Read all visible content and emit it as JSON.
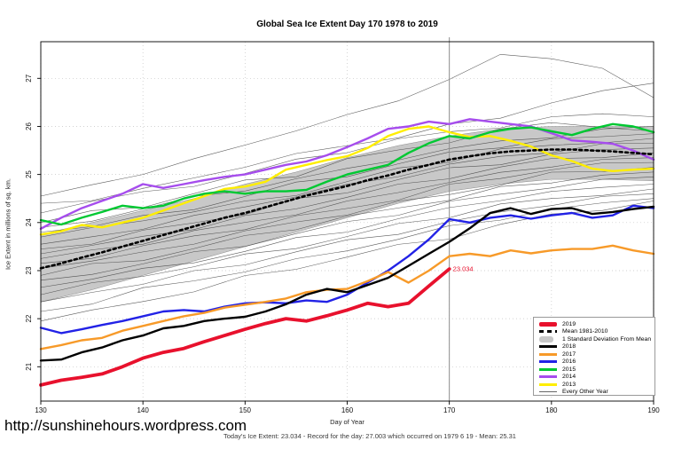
{
  "header": {
    "title": "Global Sea Ice Extent Day 170 1978 to 2019"
  },
  "footer": {
    "url": "http://sunshinehours.wordpress.com",
    "caption": "Today's Ice Extent: 23.034  - Record for the day: 27.003 which occurred on 1979 6 19  - Mean: 25.31"
  },
  "chart_data": {
    "type": "line",
    "title": "Global Sea Ice Extent Day 170 1978 to 2019",
    "xlabel": "Day of Year",
    "ylabel": "Ice Extent in millions of sq. km.",
    "xlim": [
      130,
      190
    ],
    "ylim": [
      20.3,
      27.76
    ],
    "grid": "dotted",
    "xticks": [
      130,
      140,
      150,
      160,
      170,
      180,
      190
    ],
    "yticks": [
      21,
      22,
      23,
      24,
      25,
      26,
      27
    ],
    "vline_day": 170,
    "annotation": {
      "text": "23.034",
      "day": 170,
      "value": 23.034,
      "color": "#e8112d"
    },
    "days": [
      130,
      132,
      134,
      136,
      138,
      140,
      142,
      144,
      146,
      148,
      150,
      152,
      154,
      156,
      158,
      160,
      162,
      164,
      166,
      168,
      170,
      172,
      174,
      176,
      178,
      180,
      182,
      184,
      186,
      188,
      190
    ],
    "series": [
      {
        "name": "2019",
        "color": "#e8112d",
        "width": 3.8,
        "days": [
          130,
          132,
          134,
          136,
          138,
          140,
          142,
          144,
          146,
          148,
          150,
          152,
          154,
          156,
          158,
          160,
          162,
          164,
          166,
          168,
          170
        ],
        "values": [
          20.62,
          20.72,
          20.78,
          20.85,
          21.0,
          21.18,
          21.3,
          21.38,
          21.52,
          21.65,
          21.78,
          21.9,
          22.0,
          21.95,
          22.06,
          22.18,
          22.32,
          22.25,
          22.32,
          22.68,
          23.034
        ]
      },
      {
        "name": "2018",
        "color": "#000000",
        "width": 2.4,
        "values": [
          21.13,
          21.15,
          21.3,
          21.4,
          21.55,
          21.65,
          21.8,
          21.85,
          21.95,
          22.0,
          22.04,
          22.15,
          22.3,
          22.5,
          22.62,
          22.55,
          22.7,
          22.85,
          23.1,
          23.35,
          23.6,
          23.88,
          24.2,
          24.3,
          24.18,
          24.28,
          24.3,
          24.18,
          24.22,
          24.28,
          24.33
        ]
      },
      {
        "name": "2017",
        "color": "#f79a29",
        "width": 2.4,
        "values": [
          21.37,
          21.45,
          21.55,
          21.6,
          21.75,
          21.85,
          21.95,
          22.05,
          22.12,
          22.23,
          22.29,
          22.35,
          22.42,
          22.55,
          22.6,
          22.62,
          22.78,
          22.97,
          22.75,
          23.0,
          23.3,
          23.35,
          23.3,
          23.42,
          23.36,
          23.42,
          23.45,
          23.45,
          23.52,
          23.42,
          23.35
        ]
      },
      {
        "name": "2016",
        "color": "#2222e6",
        "width": 2.4,
        "values": [
          21.81,
          21.7,
          21.78,
          21.87,
          21.95,
          22.05,
          22.15,
          22.18,
          22.15,
          22.25,
          22.32,
          22.34,
          22.32,
          22.38,
          22.35,
          22.5,
          22.75,
          23.0,
          23.3,
          23.65,
          24.07,
          24.0,
          24.1,
          24.15,
          24.08,
          24.15,
          24.2,
          24.1,
          24.15,
          24.35,
          24.3
        ]
      },
      {
        "name": "2015",
        "color": "#00c832",
        "width": 2.4,
        "values": [
          24.05,
          23.96,
          24.1,
          24.22,
          24.35,
          24.3,
          24.35,
          24.5,
          24.6,
          24.65,
          24.6,
          24.65,
          24.65,
          24.68,
          24.85,
          25.0,
          25.1,
          25.2,
          25.45,
          25.65,
          25.8,
          25.75,
          25.88,
          25.95,
          25.98,
          25.9,
          25.82,
          25.95,
          26.05,
          26.0,
          25.88
        ]
      },
      {
        "name": "2014",
        "color": "#a64ded",
        "width": 2.4,
        "values": [
          23.87,
          24.1,
          24.3,
          24.45,
          24.6,
          24.8,
          24.72,
          24.8,
          24.88,
          24.95,
          25.0,
          25.1,
          25.2,
          25.27,
          25.4,
          25.57,
          25.75,
          25.95,
          26.0,
          26.1,
          26.05,
          26.15,
          26.1,
          26.05,
          26.0,
          25.86,
          25.71,
          25.68,
          25.64,
          25.5,
          25.31
        ]
      },
      {
        "name": "2013",
        "color": "#ffee00",
        "width": 2.4,
        "values": [
          23.75,
          23.82,
          23.95,
          23.9,
          24.0,
          24.1,
          24.25,
          24.4,
          24.55,
          24.7,
          24.75,
          24.85,
          25.1,
          25.2,
          25.3,
          25.38,
          25.55,
          25.8,
          25.95,
          26.0,
          25.88,
          25.78,
          25.8,
          25.7,
          25.58,
          25.4,
          25.28,
          25.12,
          25.07,
          25.1,
          25.12
        ]
      }
    ],
    "mean_1981_2010": {
      "name": "Mean 1981-2010",
      "color": "#000000",
      "style": "dashed",
      "values": [
        23.05,
        23.15,
        23.27,
        23.38,
        23.5,
        23.62,
        23.74,
        23.86,
        23.98,
        24.1,
        24.2,
        24.32,
        24.44,
        24.56,
        24.66,
        24.76,
        24.88,
        24.98,
        25.1,
        25.2,
        25.31,
        25.38,
        25.44,
        25.48,
        25.5,
        25.52,
        25.52,
        25.5,
        25.48,
        25.45,
        25.42
      ]
    },
    "std_band": {
      "name": "1 Standard Deviation From Mean",
      "fill": "#c8c8c8",
      "days": [
        130,
        135,
        140,
        145,
        150,
        155,
        160,
        165,
        170,
        175,
        180,
        185,
        190
      ],
      "top": [
        23.75,
        24.0,
        24.25,
        24.5,
        24.8,
        25.05,
        25.35,
        25.6,
        25.8,
        25.95,
        26.0,
        26.0,
        26.0
      ],
      "bottom": [
        22.35,
        22.6,
        22.9,
        23.2,
        23.5,
        23.8,
        24.1,
        24.4,
        24.65,
        24.8,
        24.9,
        24.9,
        24.87
      ]
    },
    "other_years": {
      "name": "Every Other Year",
      "color": "#3f3f3f",
      "days": [
        130,
        135,
        140,
        145,
        150,
        155,
        160,
        165,
        170,
        175,
        180,
        185,
        190
      ],
      "lines": [
        [
          24.55,
          24.75,
          25.05,
          25.3,
          25.6,
          25.95,
          26.2,
          26.55,
          27.0,
          27.45,
          27.45,
          27.2,
          26.6
        ],
        [
          24.4,
          24.5,
          24.7,
          24.9,
          25.2,
          25.4,
          25.6,
          25.8,
          26.0,
          26.2,
          26.5,
          26.7,
          26.9
        ],
        [
          24.2,
          24.45,
          24.6,
          24.8,
          25.0,
          25.3,
          25.5,
          25.7,
          25.9,
          26.0,
          26.15,
          26.3,
          26.2
        ],
        [
          24.0,
          24.2,
          24.35,
          24.6,
          24.85,
          25.0,
          25.3,
          25.5,
          25.7,
          25.9,
          26.1,
          26.0,
          25.9
        ],
        [
          23.9,
          24.05,
          24.3,
          24.5,
          24.7,
          24.9,
          25.1,
          25.35,
          25.5,
          25.7,
          25.8,
          25.9,
          26.0
        ],
        [
          23.8,
          23.95,
          24.1,
          24.3,
          24.55,
          24.8,
          25.0,
          25.2,
          25.45,
          25.6,
          25.7,
          25.8,
          25.85
        ],
        [
          23.7,
          23.85,
          24.05,
          24.25,
          24.4,
          24.6,
          24.85,
          25.1,
          25.3,
          25.5,
          25.6,
          25.7,
          25.75
        ],
        [
          23.55,
          23.7,
          23.9,
          24.1,
          24.35,
          24.55,
          24.75,
          25.0,
          25.2,
          25.35,
          25.5,
          25.6,
          25.65
        ],
        [
          23.45,
          23.6,
          23.8,
          24.0,
          24.2,
          24.45,
          24.65,
          24.9,
          25.1,
          25.25,
          25.4,
          25.5,
          25.55
        ],
        [
          23.35,
          23.5,
          23.7,
          23.9,
          24.1,
          24.3,
          24.55,
          24.75,
          24.95,
          25.15,
          25.3,
          25.4,
          25.45
        ],
        [
          23.25,
          23.4,
          23.6,
          23.8,
          24.0,
          24.2,
          24.4,
          24.65,
          24.85,
          25.0,
          25.2,
          25.3,
          25.35
        ],
        [
          23.15,
          23.3,
          23.5,
          23.7,
          23.9,
          24.1,
          24.3,
          24.5,
          24.75,
          24.95,
          25.1,
          25.2,
          25.25
        ],
        [
          23.05,
          23.2,
          23.35,
          23.6,
          23.8,
          24.0,
          24.2,
          24.4,
          24.6,
          24.8,
          25.0,
          25.1,
          25.15
        ],
        [
          22.9,
          23.1,
          23.25,
          23.45,
          23.7,
          23.9,
          24.1,
          24.3,
          24.5,
          24.7,
          24.85,
          25.0,
          25.05
        ],
        [
          22.8,
          22.95,
          23.15,
          23.35,
          23.55,
          23.75,
          24.0,
          24.2,
          24.4,
          24.6,
          24.75,
          24.85,
          24.95
        ],
        [
          22.65,
          22.85,
          23.0,
          23.2,
          23.4,
          23.65,
          23.85,
          24.05,
          24.3,
          24.5,
          24.6,
          24.75,
          24.8
        ],
        [
          22.5,
          22.7,
          22.9,
          23.1,
          23.3,
          23.5,
          23.7,
          23.95,
          24.15,
          24.35,
          24.5,
          24.6,
          24.7
        ],
        [
          22.35,
          22.55,
          22.75,
          22.95,
          23.15,
          23.4,
          23.6,
          23.8,
          24.0,
          24.2,
          24.4,
          24.5,
          24.6
        ],
        [
          22.15,
          22.35,
          22.6,
          22.8,
          23.0,
          23.2,
          23.45,
          23.65,
          23.9,
          24.1,
          24.25,
          24.4,
          24.5
        ],
        [
          21.95,
          22.15,
          22.35,
          22.6,
          22.85,
          23.05,
          23.3,
          23.5,
          23.7,
          23.95,
          24.15,
          24.3,
          24.45
        ]
      ]
    },
    "legend": {
      "position": "bottom-right",
      "items": [
        {
          "label": "2019",
          "color": "#e8112d",
          "style": "thick"
        },
        {
          "label": "Mean 1981-2010",
          "color": "#000000",
          "style": "dashed"
        },
        {
          "label": "1 Standard Deviation From Mean",
          "color": "#c8c8c8",
          "style": "band"
        },
        {
          "label": "2018",
          "color": "#000000",
          "style": "medium"
        },
        {
          "label": "2017",
          "color": "#f79a29",
          "style": "medium"
        },
        {
          "label": "2016",
          "color": "#2222e6",
          "style": "medium"
        },
        {
          "label": "2015",
          "color": "#00c832",
          "style": "medium"
        },
        {
          "label": "2014",
          "color": "#a64ded",
          "style": "medium"
        },
        {
          "label": "2013",
          "color": "#ffee00",
          "style": "medium"
        },
        {
          "label": "Every Other Year",
          "color": "#666666",
          "style": "thin"
        }
      ]
    }
  }
}
